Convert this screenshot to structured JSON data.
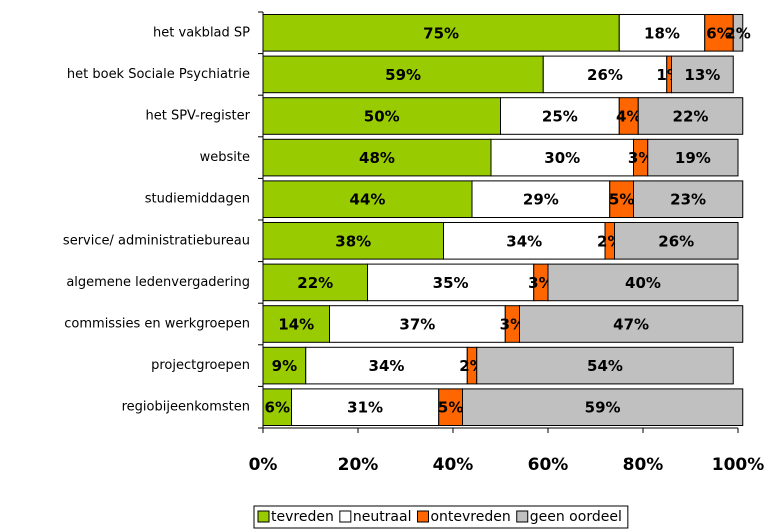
{
  "chart_data": {
    "type": "stacked-barh",
    "categories": [
      "het vakblad SP",
      "het boek Sociale Psychiatrie",
      "het SPV-register",
      "website",
      "studiemiddagen",
      "service/ administratiebureau",
      "algemene ledenvergadering",
      "commissies en werkgroepen",
      "projectgroepen",
      "regiobijeenkomsten"
    ],
    "series": [
      {
        "name": "tevreden",
        "color": "#99cc00",
        "values": [
          75,
          59,
          50,
          48,
          44,
          38,
          22,
          14,
          9,
          6
        ],
        "value_labels": [
          "75%",
          "59%",
          "50%",
          "48%",
          "44%",
          "38%",
          "22%",
          "14%",
          "9%",
          "6%"
        ]
      },
      {
        "name": "neutraal",
        "color": "#ffffff",
        "values": [
          18,
          26,
          25,
          30,
          29,
          34,
          35,
          37,
          34,
          31
        ],
        "value_labels": [
          "18%",
          "26%",
          "25%",
          "30%",
          "29%",
          "34%",
          "35%",
          "37%",
          "34%",
          "31%"
        ]
      },
      {
        "name": "ontevreden",
        "color": "#ff6600",
        "values": [
          6,
          1,
          4,
          3,
          5,
          2,
          3,
          3,
          2,
          5
        ],
        "value_labels": [
          "6%",
          "1%",
          "4%",
          "3%",
          "5%",
          "2%",
          "3%",
          "3%",
          "2%",
          "5%"
        ]
      },
      {
        "name": "geen oordeel",
        "color": "#c0c0c0",
        "values": [
          2,
          13,
          22,
          19,
          23,
          26,
          40,
          47,
          54,
          59
        ],
        "value_labels": [
          "2%",
          "13%",
          "22%",
          "19%",
          "23%",
          "26%",
          "40%",
          "47%",
          "54%",
          "59%"
        ]
      }
    ],
    "xlim": [
      0,
      100
    ],
    "xticks": [
      {
        "value": 0,
        "label": "0%"
      },
      {
        "value": 20,
        "label": "20%"
      },
      {
        "value": 40,
        "label": "40%"
      },
      {
        "value": 60,
        "label": "60%"
      },
      {
        "value": 80,
        "label": "80%"
      },
      {
        "value": 100,
        "label": "100%"
      }
    ],
    "legend": "bottom"
  }
}
